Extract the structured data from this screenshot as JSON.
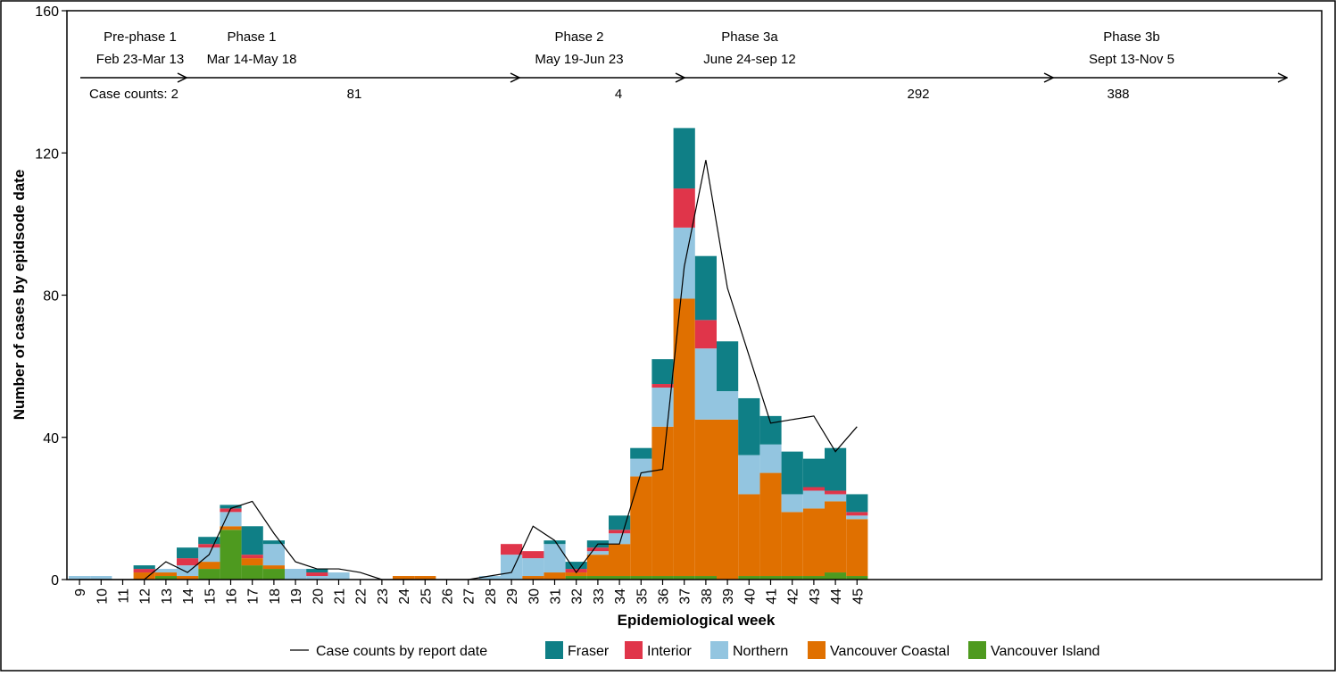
{
  "chart_data": {
    "type": "bar",
    "stacked": true,
    "title": "",
    "xlabel": "Epidemiological week",
    "ylabel": "Number of cases by epidsode date",
    "categories": [
      9,
      10,
      11,
      12,
      13,
      14,
      15,
      16,
      17,
      18,
      19,
      20,
      21,
      22,
      23,
      24,
      25,
      26,
      27,
      28,
      29,
      30,
      31,
      32,
      33,
      34,
      35,
      36,
      37,
      38,
      39,
      40,
      41,
      42,
      43,
      44,
      45
    ],
    "ylim": [
      0,
      160
    ],
    "yticks": [
      0,
      40,
      80,
      120,
      160
    ],
    "grid": false,
    "series": [
      {
        "name": "Vancouver Island",
        "color": "#4e9a1f",
        "values": [
          0,
          0,
          0,
          0,
          1,
          0,
          3,
          14,
          4,
          3,
          0,
          0,
          0,
          0,
          0,
          0,
          0,
          0,
          0,
          0,
          0,
          0,
          0,
          1,
          1,
          1,
          1,
          1,
          1,
          1,
          0,
          1,
          1,
          1,
          1,
          2,
          1
        ]
      },
      {
        "name": "Vancouver Coastal",
        "color": "#e07000",
        "values": [
          0,
          0,
          0,
          2,
          1,
          1,
          2,
          1,
          2,
          1,
          0,
          0,
          0,
          0,
          0,
          1,
          1,
          0,
          0,
          0,
          0,
          1,
          2,
          1,
          6,
          9,
          28,
          42,
          78,
          44,
          45,
          23,
          29,
          18,
          19,
          20,
          16
        ]
      },
      {
        "name": "Northern",
        "color": "#93c5e0",
        "values": [
          1,
          1,
          0,
          0,
          1,
          3,
          4,
          4,
          0,
          6,
          3,
          1,
          2,
          0,
          0,
          0,
          0,
          0,
          0,
          1,
          7,
          5,
          8,
          0,
          1,
          3,
          5,
          11,
          20,
          20,
          8,
          11,
          8,
          5,
          5,
          2,
          1
        ]
      },
      {
        "name": "Interior",
        "color": "#e0354a",
        "values": [
          0,
          0,
          0,
          1,
          0,
          2,
          1,
          1,
          1,
          0,
          0,
          1,
          0,
          0,
          0,
          0,
          0,
          0,
          0,
          0,
          3,
          2,
          0,
          1,
          1,
          1,
          0,
          1,
          11,
          8,
          0,
          0,
          0,
          0,
          1,
          1,
          1
        ]
      },
      {
        "name": "Fraser",
        "color": "#0f7f86",
        "values": [
          0,
          0,
          0,
          1,
          0,
          3,
          2,
          1,
          8,
          1,
          0,
          1,
          0,
          0,
          0,
          0,
          0,
          0,
          0,
          0,
          0,
          0,
          1,
          2,
          2,
          4,
          3,
          7,
          17,
          18,
          14,
          16,
          8,
          12,
          8,
          12,
          5
        ]
      }
    ],
    "line": {
      "name": "Case counts by report date",
      "color": "#000000",
      "values": [
        0,
        0,
        0,
        0,
        5,
        2,
        7,
        20,
        22,
        13,
        5,
        3,
        3,
        2,
        0,
        0,
        0,
        0,
        0,
        1,
        2,
        15,
        11,
        2,
        10,
        10,
        30,
        31,
        88,
        118,
        82,
        63,
        44,
        45,
        46,
        36,
        43
      ]
    },
    "phases": [
      {
        "name": "Pre-phase 1",
        "dates": "Feb 23-Mar 13",
        "count_text": "Case counts: 2"
      },
      {
        "name": "Phase 1",
        "dates": "Mar 14-May 18",
        "count_text": "81"
      },
      {
        "name": "Phase 2",
        "dates": "May 19-Jun 23",
        "count_text": "4"
      },
      {
        "name": "Phase 3a",
        "dates": "June 24-sep 12",
        "count_text": "292"
      },
      {
        "name": "Phase 3b",
        "dates": "Sept 13-Nov 5",
        "count_text": "388"
      }
    ],
    "legend": {
      "placement": "bottom",
      "entries": [
        "Case counts by report date",
        "Fraser",
        "Interior",
        "Northern",
        "Vancouver Coastal",
        "Vancouver Island"
      ]
    }
  }
}
